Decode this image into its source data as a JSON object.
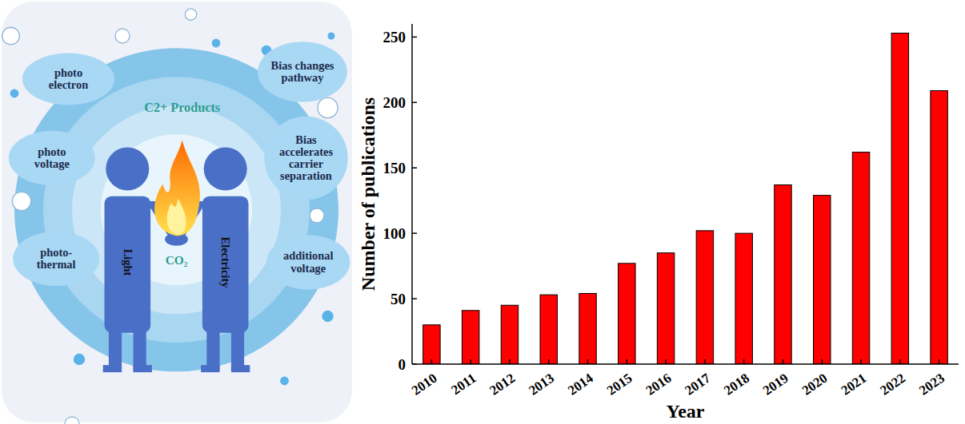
{
  "diagram": {
    "center_title": "C2+ Products",
    "center_label": "CO₂",
    "figures": [
      "Light",
      "Electricity"
    ],
    "left_effects": [
      [
        "photo",
        "electron"
      ],
      [
        "photo",
        "voltage"
      ],
      [
        "photo-",
        "thermal"
      ]
    ],
    "right_effects": [
      [
        "Bias changes",
        "pathway"
      ],
      [
        "Bias",
        "accelerates",
        "carrier",
        "separation"
      ],
      [
        "additional",
        "voltage"
      ]
    ]
  },
  "chart_data": {
    "type": "bar",
    "categories": [
      "2010",
      "2011",
      "2012",
      "2013",
      "2014",
      "2015",
      "2016",
      "2017",
      "2018",
      "2019",
      "2020",
      "2021",
      "2022",
      "2023"
    ],
    "values": [
      30,
      41,
      45,
      53,
      54,
      77,
      85,
      102,
      100,
      137,
      129,
      162,
      253,
      209
    ],
    "color": "#ff0000",
    "ylim": [
      0,
      260
    ],
    "yticks": [
      0,
      50,
      100,
      150,
      200,
      250
    ],
    "x_label": "Year",
    "y_label": "Number of publications",
    "grid": false
  }
}
